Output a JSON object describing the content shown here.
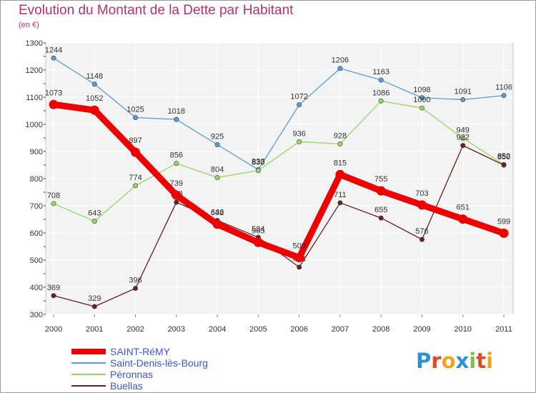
{
  "title": "Evolution du Montant de la Dette par Habitant",
  "unit": "(en €)",
  "brand": "Proxiti",
  "chart_data": {
    "type": "line",
    "title": "Evolution du Montant de la Dette par Habitant",
    "subtitle": "(en €)",
    "x": [
      "2000",
      "2001",
      "2002",
      "2003",
      "2004",
      "2005",
      "2006",
      "2007",
      "2008",
      "2009",
      "2010",
      "2011"
    ],
    "ylim": [
      300,
      1300
    ],
    "yticks": [
      300,
      400,
      500,
      600,
      700,
      800,
      900,
      1000,
      1100,
      1200,
      1300
    ],
    "grid": true,
    "legend_position": "bottom-left",
    "series": [
      {
        "name": "SAINT-RéMY",
        "color": "#ee0000",
        "values": [
          1073,
          1052,
          897,
          739,
          632,
          565,
          509,
          815,
          755,
          703,
          651,
          599
        ]
      },
      {
        "name": "Saint-Denis-lès-Bourg",
        "color": "#5b9bd5",
        "values": [
          1244,
          1148,
          1025,
          1018,
          925,
          833,
          1072,
          1206,
          1163,
          1098,
          1091,
          1106
        ]
      },
      {
        "name": "Péronnas",
        "color": "#99d566",
        "values": [
          708,
          643,
          774,
          856,
          804,
          830,
          936,
          928,
          1086,
          1060,
          949,
          852
        ]
      },
      {
        "name": "Buellas",
        "color": "#6b2020",
        "values": [
          369,
          329,
          396,
          713,
          646,
          584,
          474,
          711,
          655,
          576,
          922,
          850
        ]
      }
    ]
  }
}
